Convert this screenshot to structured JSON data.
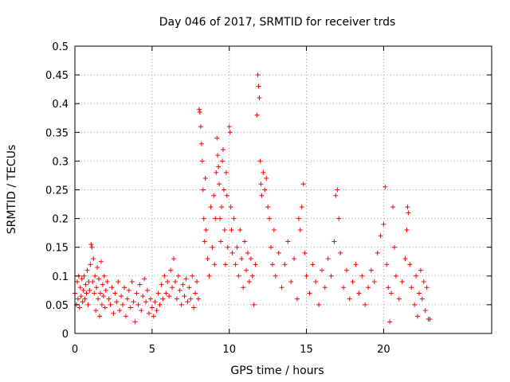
{
  "chart_data": {
    "type": "scatter",
    "title": "Day 046 of 2017, SRMTID for receiver trds",
    "xlabel": "GPS time / hours",
    "ylabel": "SRMTID / TECUs",
    "xlim": [
      0,
      27
    ],
    "ylim": [
      0,
      0.5
    ],
    "xticks": [
      0,
      5,
      10,
      15,
      20
    ],
    "xtick_labels": [
      "0",
      "5",
      "10",
      "15",
      "20"
    ],
    "yticks": [
      0,
      0.05,
      0.1,
      0.15,
      0.2,
      0.25,
      0.3,
      0.35,
      0.4,
      0.45,
      0.5
    ],
    "ytick_labels": [
      "0",
      "0.05",
      "0.1",
      "0.15",
      "0.2",
      "0.25",
      "0.3",
      "0.35",
      "0.4",
      "0.45",
      "0.5"
    ],
    "marker": "+",
    "grid": true,
    "colors": {
      "series": "#ff0000",
      "grid": "#a0a0a0",
      "frame": "#000000"
    },
    "series": [
      {
        "name": "SRMTID",
        "points": [
          [
            0.0,
            0.07
          ],
          [
            0.1,
            0.05
          ],
          [
            0.15,
            0.09
          ],
          [
            0.2,
            0.06
          ],
          [
            0.25,
            0.1
          ],
          [
            0.3,
            0.045
          ],
          [
            0.35,
            0.08
          ],
          [
            0.4,
            0.065
          ],
          [
            0.45,
            0.095
          ],
          [
            0.5,
            0.055
          ],
          [
            0.55,
            0.075
          ],
          [
            0.6,
            0.1
          ],
          [
            0.65,
            0.06
          ],
          [
            0.7,
            0.085
          ],
          [
            0.75,
            0.07
          ],
          [
            0.8,
            0.11
          ],
          [
            0.85,
            0.05
          ],
          [
            0.9,
            0.09
          ],
          [
            0.95,
            0.075
          ],
          [
            1.0,
            0.12
          ],
          [
            1.05,
            0.155
          ],
          [
            1.1,
            0.15
          ],
          [
            1.15,
            0.09
          ],
          [
            1.2,
            0.13
          ],
          [
            1.25,
            0.07
          ],
          [
            1.3,
            0.1
          ],
          [
            1.35,
            0.04
          ],
          [
            1.4,
            0.08
          ],
          [
            1.45,
            0.115
          ],
          [
            1.5,
            0.06
          ],
          [
            1.55,
            0.095
          ],
          [
            1.6,
            0.03
          ],
          [
            1.65,
            0.07
          ],
          [
            1.7,
            0.125
          ],
          [
            1.75,
            0.05
          ],
          [
            1.8,
            0.085
          ],
          [
            1.85,
            0.065
          ],
          [
            1.9,
            0.1
          ],
          [
            1.95,
            0.045
          ],
          [
            2.0,
            0.075
          ],
          [
            2.1,
            0.09
          ],
          [
            2.2,
            0.06
          ],
          [
            2.3,
            0.05
          ],
          [
            2.4,
            0.08
          ],
          [
            2.5,
            0.035
          ],
          [
            2.6,
            0.07
          ],
          [
            2.7,
            0.055
          ],
          [
            2.8,
            0.09
          ],
          [
            2.9,
            0.04
          ],
          [
            3.0,
            0.065
          ],
          [
            3.1,
            0.05
          ],
          [
            3.2,
            0.08
          ],
          [
            3.3,
            0.03
          ],
          [
            3.4,
            0.06
          ],
          [
            3.5,
            0.075
          ],
          [
            3.6,
            0.045
          ],
          [
            3.7,
            0.09
          ],
          [
            3.8,
            0.055
          ],
          [
            3.9,
            0.02
          ],
          [
            4.0,
            0.07
          ],
          [
            4.1,
            0.05
          ],
          [
            4.2,
            0.085
          ],
          [
            4.3,
            0.04
          ],
          [
            4.4,
            0.065
          ],
          [
            4.5,
            0.095
          ],
          [
            4.6,
            0.055
          ],
          [
            4.7,
            0.075
          ],
          [
            4.8,
            0.035
          ],
          [
            4.9,
            0.06
          ],
          [
            5.0,
            0.045
          ],
          [
            5.1,
            0.03
          ],
          [
            5.2,
            0.055
          ],
          [
            5.3,
            0.04
          ],
          [
            5.4,
            0.07
          ],
          [
            5.5,
            0.05
          ],
          [
            5.6,
            0.085
          ],
          [
            5.7,
            0.06
          ],
          [
            5.8,
            0.1
          ],
          [
            5.9,
            0.07
          ],
          [
            6.0,
            0.09
          ],
          [
            6.1,
            0.065
          ],
          [
            6.2,
            0.11
          ],
          [
            6.3,
            0.08
          ],
          [
            6.4,
            0.13
          ],
          [
            6.5,
            0.09
          ],
          [
            6.6,
            0.06
          ],
          [
            6.7,
            0.1
          ],
          [
            6.8,
            0.075
          ],
          [
            6.9,
            0.05
          ],
          [
            7.0,
            0.085
          ],
          [
            7.1,
            0.065
          ],
          [
            7.2,
            0.095
          ],
          [
            7.3,
            0.055
          ],
          [
            7.4,
            0.08
          ],
          [
            7.5,
            0.06
          ],
          [
            7.6,
            0.1
          ],
          [
            7.7,
            0.045
          ],
          [
            7.8,
            0.07
          ],
          [
            7.9,
            0.09
          ],
          [
            8.0,
            0.06
          ],
          [
            8.05,
            0.39
          ],
          [
            8.1,
            0.385
          ],
          [
            8.15,
            0.36
          ],
          [
            8.2,
            0.33
          ],
          [
            8.25,
            0.3
          ],
          [
            8.3,
            0.25
          ],
          [
            8.35,
            0.2
          ],
          [
            8.4,
            0.16
          ],
          [
            8.45,
            0.27
          ],
          [
            8.5,
            0.18
          ],
          [
            8.6,
            0.13
          ],
          [
            8.7,
            0.1
          ],
          [
            8.8,
            0.22
          ],
          [
            8.9,
            0.15
          ],
          [
            9.0,
            0.24
          ],
          [
            9.05,
            0.12
          ],
          [
            9.1,
            0.2
          ],
          [
            9.15,
            0.28
          ],
          [
            9.2,
            0.34
          ],
          [
            9.25,
            0.31
          ],
          [
            9.3,
            0.29
          ],
          [
            9.35,
            0.26
          ],
          [
            9.4,
            0.2
          ],
          [
            9.45,
            0.16
          ],
          [
            9.5,
            0.22
          ],
          [
            9.55,
            0.3
          ],
          [
            9.6,
            0.32
          ],
          [
            9.65,
            0.25
          ],
          [
            9.7,
            0.18
          ],
          [
            9.75,
            0.12
          ],
          [
            9.8,
            0.28
          ],
          [
            9.85,
            0.24
          ],
          [
            9.9,
            0.15
          ],
          [
            10.0,
            0.36
          ],
          [
            10.05,
            0.35
          ],
          [
            10.1,
            0.22
          ],
          [
            10.15,
            0.18
          ],
          [
            10.2,
            0.14
          ],
          [
            10.3,
            0.2
          ],
          [
            10.4,
            0.12
          ],
          [
            10.5,
            0.15
          ],
          [
            10.6,
            0.1
          ],
          [
            10.7,
            0.18
          ],
          [
            10.8,
            0.13
          ],
          [
            10.9,
            0.08
          ],
          [
            11.0,
            0.16
          ],
          [
            11.1,
            0.11
          ],
          [
            11.2,
            0.14
          ],
          [
            11.3,
            0.09
          ],
          [
            11.4,
            0.13
          ],
          [
            11.5,
            0.1
          ],
          [
            11.6,
            0.05
          ],
          [
            11.7,
            0.12
          ],
          [
            11.8,
            0.38
          ],
          [
            11.85,
            0.45
          ],
          [
            11.9,
            0.43
          ],
          [
            11.95,
            0.41
          ],
          [
            12.0,
            0.3
          ],
          [
            12.05,
            0.26
          ],
          [
            12.1,
            0.24
          ],
          [
            12.2,
            0.28
          ],
          [
            12.3,
            0.25
          ],
          [
            12.4,
            0.27
          ],
          [
            12.5,
            0.22
          ],
          [
            12.6,
            0.2
          ],
          [
            12.7,
            0.15
          ],
          [
            12.8,
            0.12
          ],
          [
            12.9,
            0.18
          ],
          [
            13.0,
            0.1
          ],
          [
            13.2,
            0.14
          ],
          [
            13.4,
            0.08
          ],
          [
            13.6,
            0.12
          ],
          [
            13.8,
            0.16
          ],
          [
            14.0,
            0.09
          ],
          [
            14.2,
            0.13
          ],
          [
            14.4,
            0.06
          ],
          [
            14.5,
            0.2
          ],
          [
            14.6,
            0.18
          ],
          [
            14.7,
            0.22
          ],
          [
            14.8,
            0.26
          ],
          [
            14.9,
            0.14
          ],
          [
            15.0,
            0.1
          ],
          [
            15.2,
            0.07
          ],
          [
            15.4,
            0.12
          ],
          [
            15.6,
            0.09
          ],
          [
            15.8,
            0.05
          ],
          [
            16.0,
            0.11
          ],
          [
            16.2,
            0.08
          ],
          [
            16.4,
            0.13
          ],
          [
            16.6,
            0.1
          ],
          [
            16.8,
            0.16
          ],
          [
            16.9,
            0.24
          ],
          [
            17.0,
            0.25
          ],
          [
            17.1,
            0.2
          ],
          [
            17.2,
            0.14
          ],
          [
            17.4,
            0.08
          ],
          [
            17.6,
            0.11
          ],
          [
            17.8,
            0.06
          ],
          [
            18.0,
            0.09
          ],
          [
            18.2,
            0.12
          ],
          [
            18.4,
            0.07
          ],
          [
            18.6,
            0.1
          ],
          [
            18.8,
            0.05
          ],
          [
            19.0,
            0.08
          ],
          [
            19.2,
            0.11
          ],
          [
            19.4,
            0.09
          ],
          [
            19.6,
            0.14
          ],
          [
            19.8,
            0.17
          ],
          [
            20.0,
            0.19
          ],
          [
            20.1,
            0.255
          ],
          [
            20.2,
            0.12
          ],
          [
            20.3,
            0.08
          ],
          [
            20.4,
            0.02
          ],
          [
            20.5,
            0.07
          ],
          [
            20.6,
            0.22
          ],
          [
            20.7,
            0.15
          ],
          [
            20.8,
            0.1
          ],
          [
            21.0,
            0.06
          ],
          [
            21.2,
            0.09
          ],
          [
            21.4,
            0.13
          ],
          [
            21.5,
            0.18
          ],
          [
            21.55,
            0.22
          ],
          [
            21.6,
            0.21
          ],
          [
            21.7,
            0.12
          ],
          [
            21.8,
            0.08
          ],
          [
            22.0,
            0.05
          ],
          [
            22.1,
            0.1
          ],
          [
            22.2,
            0.03
          ],
          [
            22.3,
            0.07
          ],
          [
            22.4,
            0.11
          ],
          [
            22.5,
            0.06
          ],
          [
            22.6,
            0.09
          ],
          [
            22.7,
            0.04
          ],
          [
            22.8,
            0.08
          ],
          [
            22.9,
            0.025
          ],
          [
            23.0,
            0.025
          ]
        ]
      }
    ]
  }
}
